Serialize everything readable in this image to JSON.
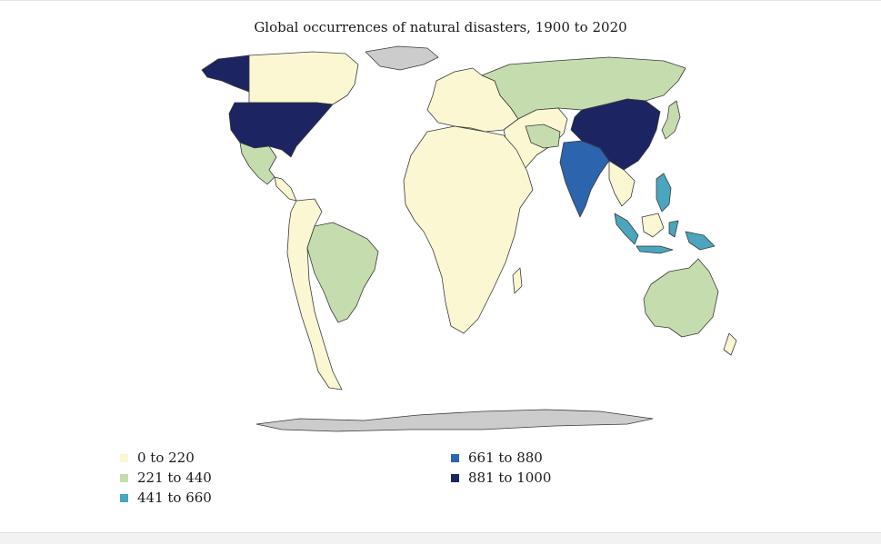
{
  "map": {
    "title": "Global occurrences of natural disasters, 1900 to 2020",
    "colors": {
      "bin_0_220": "#fbf7d3",
      "bin_221_440": "#c5dcae",
      "bin_441_660": "#4aa5bd",
      "bin_661_880": "#2c64ad",
      "bin_881_1000": "#1c2561",
      "no_data": "#cccccc",
      "border": "#3a3a3a"
    },
    "legend": [
      {
        "label": "0 to 220",
        "color": "#fbf7d3"
      },
      {
        "label": "221 to 440",
        "color": "#c5dcae"
      },
      {
        "label": "441 to 660",
        "color": "#4aa5bd"
      },
      {
        "label": "661 to 880",
        "color": "#2c64ad"
      },
      {
        "label": "881 to 1000",
        "color": "#1c2561"
      }
    ]
  }
}
